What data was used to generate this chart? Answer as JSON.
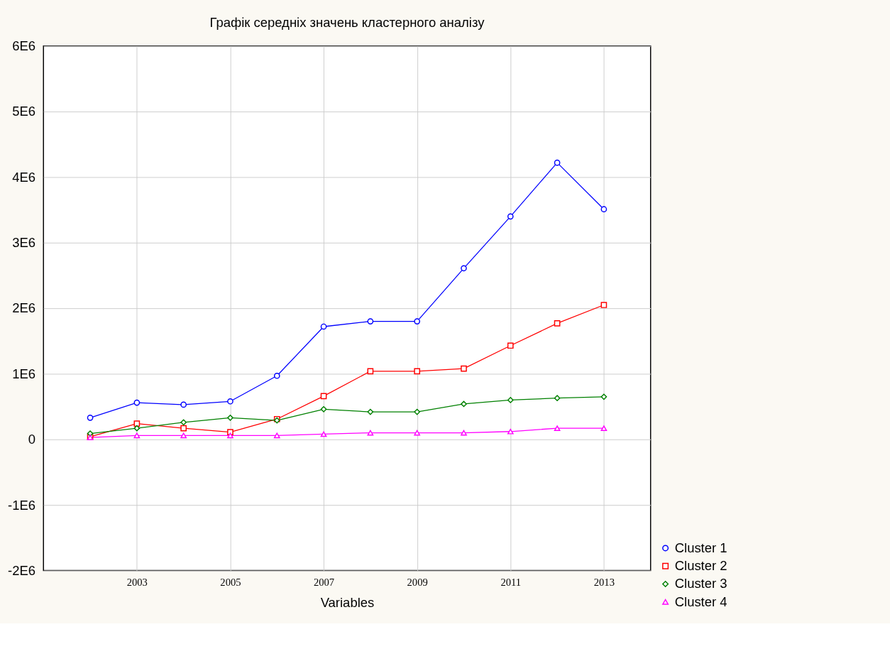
{
  "chart_data": {
    "type": "line",
    "title": "Графік середніх значень кластерного аналізу",
    "xlabel": "Variables",
    "categories": [
      null,
      "2003",
      null,
      "2005",
      null,
      "2007",
      null,
      "2009",
      null,
      "2011",
      null,
      "2013"
    ],
    "series": [
      {
        "name": "Cluster  1",
        "color": "#0000ff",
        "marker": "circle",
        "values": [
          330000,
          560000,
          530000,
          580000,
          970000,
          1720000,
          1800000,
          1800000,
          2610000,
          3400000,
          4220000,
          3510000
        ]
      },
      {
        "name": "Cluster  2",
        "color": "#ff0000",
        "marker": "square",
        "values": [
          40000,
          240000,
          170000,
          110000,
          310000,
          660000,
          1040000,
          1040000,
          1080000,
          1430000,
          1770000,
          2050000
        ]
      },
      {
        "name": "Cluster  3",
        "color": "#008000",
        "marker": "diamond",
        "values": [
          90000,
          170000,
          260000,
          330000,
          290000,
          460000,
          420000,
          420000,
          540000,
          600000,
          630000,
          650000
        ]
      },
      {
        "name": "Cluster  4",
        "color": "#ff00ff",
        "marker": "triangle",
        "values": [
          30000,
          60000,
          60000,
          60000,
          60000,
          80000,
          100000,
          100000,
          100000,
          120000,
          170000,
          170000
        ]
      }
    ],
    "ylim": [
      -2000000,
      6000000
    ],
    "yticks": [
      {
        "value": -2000000,
        "label": "-2E6"
      },
      {
        "value": -1000000,
        "label": "-1E6"
      },
      {
        "value": 0,
        "label": "0"
      },
      {
        "value": 1000000,
        "label": "1E6"
      },
      {
        "value": 2000000,
        "label": "2E6"
      },
      {
        "value": 3000000,
        "label": "3E6"
      },
      {
        "value": 4000000,
        "label": "4E6"
      },
      {
        "value": 5000000,
        "label": "5E6"
      },
      {
        "value": 6000000,
        "label": "6E6"
      }
    ],
    "grid": true,
    "legend": "bottom right",
    "line_style": "solid"
  }
}
